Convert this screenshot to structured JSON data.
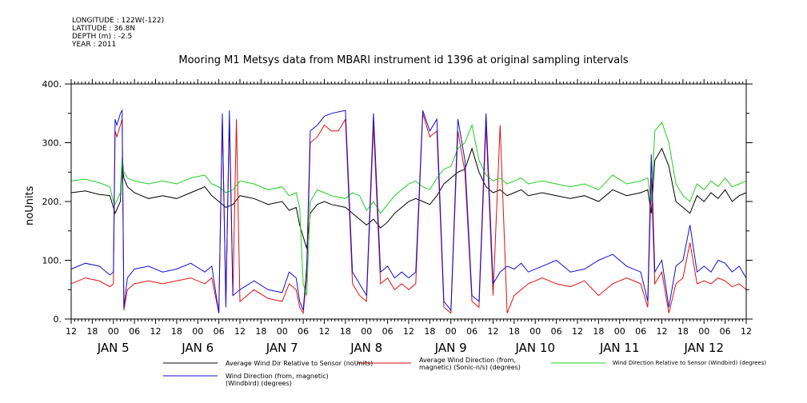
{
  "meta": {
    "longitude": "LONGITUDE : 122W(-122)",
    "latitude": "LATITUDE : 36.8N",
    "depth": "DEPTH (m) : -2.5",
    "year": "YEAR : 2011"
  },
  "chart_data": {
    "type": "line",
    "title": "Mooring M1 Metsys data from MBARI instrument id 1396 at original sampling intervals",
    "ylabel": "noUnits",
    "xlabel": "",
    "ylim": [
      0,
      400
    ],
    "yticks": [
      "0.",
      "100.",
      "200.",
      "300.",
      "400."
    ],
    "x_unit": "hours since JAN 4 12:00",
    "xlim": [
      0,
      192
    ],
    "hour_ticks": [
      "12",
      "18",
      "00",
      "06",
      "12",
      "18",
      "00",
      "06",
      "12",
      "18",
      "00",
      "06",
      "12",
      "18",
      "00",
      "06",
      "12",
      "18",
      "00",
      "06",
      "12",
      "18",
      "00",
      "06",
      "12",
      "18",
      "00",
      "06",
      "12",
      "18",
      "00",
      "06",
      "12"
    ],
    "day_labels": [
      {
        "label": "JAN  5",
        "x": 12
      },
      {
        "label": "JAN  6",
        "x": 36
      },
      {
        "label": "JAN  7",
        "x": 60
      },
      {
        "label": "JAN  8",
        "x": 84
      },
      {
        "label": "JAN  9",
        "x": 108
      },
      {
        "label": "JAN 10",
        "x": 132
      },
      {
        "label": "JAN 11",
        "x": 156
      },
      {
        "label": "JAN 12",
        "x": 180
      }
    ],
    "grid": false,
    "legend_position": "bottom",
    "series": [
      {
        "name": "Average Wind Dir Relative to Sensor (noUnits)",
        "color": "#000000",
        "x": [
          0,
          4,
          8,
          11,
          12,
          12.5,
          14,
          14.5,
          15,
          16,
          18,
          22,
          26,
          30,
          34,
          38,
          40,
          42,
          44,
          46,
          48,
          52,
          56,
          60,
          62,
          64,
          65,
          66,
          67,
          68,
          70,
          72,
          74,
          78,
          80,
          82,
          84,
          86,
          88,
          90,
          92,
          94,
          96,
          98,
          100,
          102,
          104,
          106,
          108,
          110,
          112,
          114,
          116,
          118,
          120,
          122,
          124,
          126,
          128,
          130,
          134,
          138,
          142,
          146,
          150,
          154,
          158,
          162,
          164,
          165,
          166,
          168,
          170,
          172,
          174,
          176,
          178,
          180,
          182,
          184,
          186,
          188,
          190,
          192
        ],
        "y": [
          215,
          218,
          212,
          210,
          190,
          180,
          200,
          260,
          240,
          225,
          215,
          205,
          210,
          205,
          215,
          225,
          210,
          200,
          190,
          195,
          210,
          205,
          195,
          200,
          185,
          190,
          160,
          140,
          120,
          180,
          195,
          200,
          195,
          190,
          180,
          170,
          160,
          170,
          155,
          165,
          180,
          190,
          200,
          205,
          200,
          195,
          210,
          230,
          240,
          250,
          255,
          290,
          250,
          225,
          215,
          220,
          210,
          215,
          220,
          210,
          215,
          210,
          205,
          210,
          200,
          220,
          210,
          215,
          220,
          180,
          270,
          290,
          260,
          200,
          190,
          180,
          210,
          200,
          215,
          205,
          220,
          200,
          210,
          215
        ]
      },
      {
        "name": "Average Wind Direction (from, magnetic) (Sonic-n/s) (degrees)",
        "color": "#e01010",
        "x": [
          0,
          4,
          8,
          11,
          12,
          12.5,
          13,
          14,
          14.5,
          15,
          16,
          18,
          22,
          26,
          30,
          34,
          38,
          40,
          42,
          43,
          44,
          45,
          46,
          47,
          48,
          50,
          52,
          56,
          60,
          62,
          64,
          65,
          66,
          67,
          68,
          70,
          71,
          72,
          74,
          76,
          78,
          80,
          82,
          84,
          86,
          88,
          90,
          92,
          94,
          96,
          98,
          100,
          102,
          104,
          106,
          108,
          110,
          112,
          114,
          116,
          118,
          120,
          122,
          124,
          126,
          128,
          130,
          134,
          138,
          142,
          146,
          150,
          154,
          158,
          162,
          164,
          165,
          166,
          168,
          170,
          172,
          174,
          176,
          178,
          180,
          182,
          184,
          186,
          188,
          190,
          192
        ],
        "y": [
          60,
          70,
          65,
          55,
          60,
          320,
          310,
          330,
          340,
          15,
          50,
          60,
          65,
          60,
          65,
          70,
          60,
          70,
          10,
          340,
          30,
          340,
          40,
          340,
          30,
          40,
          50,
          35,
          30,
          60,
          50,
          20,
          10,
          70,
          300,
          310,
          320,
          330,
          320,
          320,
          340,
          60,
          40,
          30,
          330,
          60,
          70,
          50,
          60,
          50,
          60,
          350,
          310,
          320,
          20,
          10,
          320,
          250,
          30,
          20,
          330,
          40,
          330,
          10,
          40,
          50,
          60,
          70,
          60,
          55,
          65,
          40,
          60,
          70,
          60,
          20,
          240,
          60,
          80,
          10,
          60,
          70,
          130,
          60,
          65,
          60,
          70,
          65,
          55,
          60,
          50
        ]
      },
      {
        "name": "Wind Direction Relative to Sensor (Windbird) (degrees)",
        "color": "#20d020",
        "x": [
          0,
          4,
          8,
          11,
          12,
          12.5,
          14,
          14.5,
          15,
          16,
          18,
          22,
          26,
          30,
          34,
          38,
          40,
          42,
          44,
          46,
          48,
          52,
          56,
          60,
          62,
          64,
          65,
          66,
          67,
          68,
          70,
          72,
          74,
          78,
          80,
          82,
          84,
          86,
          88,
          90,
          92,
          94,
          96,
          98,
          100,
          102,
          104,
          106,
          108,
          110,
          112,
          114,
          116,
          118,
          120,
          122,
          124,
          126,
          128,
          130,
          134,
          138,
          142,
          146,
          150,
          154,
          158,
          162,
          164,
          165,
          166,
          168,
          170,
          172,
          174,
          176,
          178,
          180,
          182,
          184,
          186,
          188,
          190,
          192
        ],
        "y": [
          235,
          238,
          232,
          225,
          200,
          195,
          215,
          275,
          250,
          240,
          235,
          230,
          235,
          230,
          240,
          245,
          230,
          225,
          215,
          220,
          235,
          230,
          220,
          225,
          210,
          215,
          190,
          60,
          40,
          200,
          220,
          215,
          210,
          205,
          215,
          210,
          185,
          200,
          180,
          195,
          210,
          220,
          230,
          235,
          225,
          220,
          240,
          255,
          260,
          290,
          300,
          330,
          270,
          245,
          235,
          240,
          230,
          235,
          240,
          230,
          235,
          230,
          225,
          230,
          220,
          245,
          230,
          235,
          240,
          200,
          320,
          335,
          300,
          230,
          210,
          200,
          230,
          220,
          235,
          225,
          240,
          225,
          230,
          235
        ]
      },
      {
        "name": "Wind Direction (from, magnetic) (Windbird) (degrees)",
        "color": "#1010d0",
        "x": [
          0,
          4,
          8,
          11,
          12,
          12.5,
          13,
          14,
          14.5,
          15,
          16,
          18,
          22,
          26,
          30,
          34,
          38,
          40,
          42,
          43,
          44,
          45,
          46,
          48,
          52,
          56,
          60,
          62,
          64,
          65,
          66,
          67,
          68,
          70,
          72,
          74,
          78,
          80,
          82,
          84,
          86,
          88,
          90,
          92,
          94,
          96,
          98,
          100,
          102,
          104,
          106,
          108,
          110,
          112,
          114,
          116,
          118,
          120,
          122,
          124,
          126,
          128,
          130,
          134,
          138,
          142,
          146,
          150,
          154,
          158,
          162,
          164,
          165,
          166,
          168,
          170,
          172,
          174,
          176,
          178,
          180,
          182,
          184,
          186,
          188,
          190,
          192
        ],
        "y": [
          85,
          95,
          90,
          75,
          80,
          340,
          330,
          350,
          355,
          20,
          70,
          85,
          90,
          80,
          85,
          95,
          80,
          90,
          10,
          350,
          20,
          355,
          40,
          50,
          65,
          50,
          45,
          80,
          70,
          30,
          15,
          90,
          320,
          330,
          345,
          350,
          355,
          80,
          60,
          40,
          350,
          80,
          90,
          70,
          80,
          70,
          80,
          355,
          320,
          340,
          30,
          15,
          340,
          270,
          40,
          30,
          350,
          60,
          80,
          90,
          85,
          95,
          80,
          90,
          100,
          80,
          85,
          100,
          110,
          90,
          80,
          30,
          280,
          80,
          100,
          20,
          90,
          100,
          160,
          80,
          90,
          80,
          100,
          95,
          80,
          90,
          70
        ]
      }
    ]
  }
}
